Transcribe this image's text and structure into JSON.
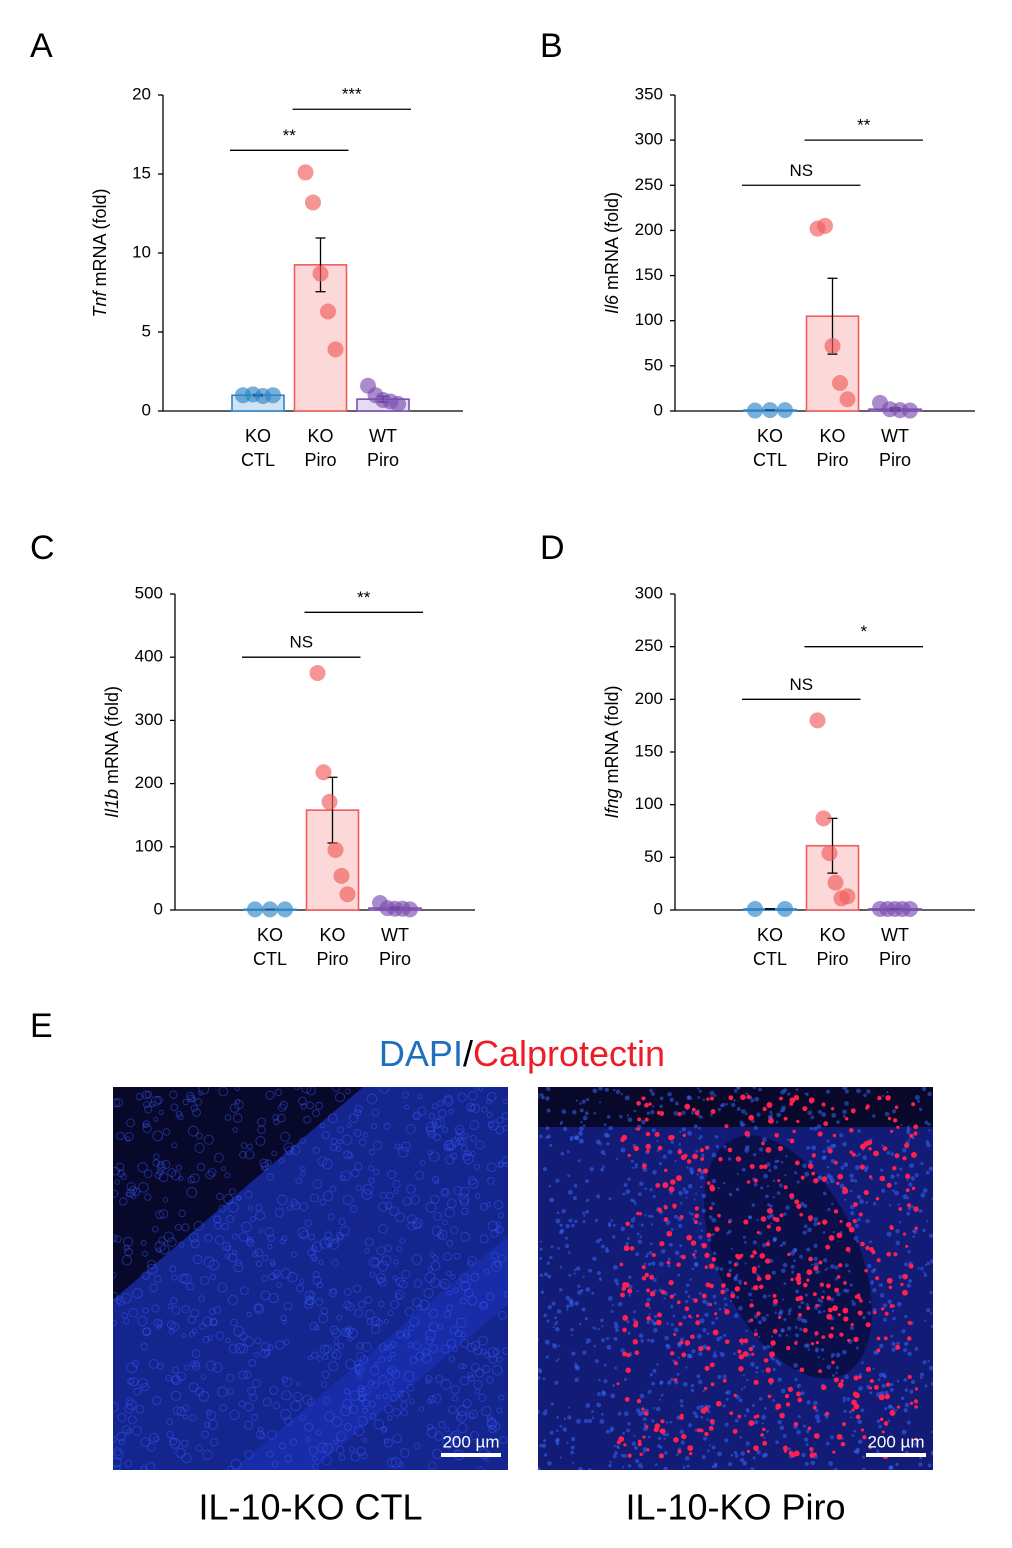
{
  "chart_data": [
    {
      "type": "bar",
      "label": "A",
      "ylabel_gene": "Tnf",
      "ylabel_rest": "mRNA (fold)",
      "categories": [
        [
          "KO",
          "CTL"
        ],
        [
          "KO",
          "Piro"
        ],
        [
          "WT",
          "Piro"
        ]
      ],
      "colors": [
        "#2e86c8",
        "#f15c5c",
        "#7b4fb0"
      ],
      "fills": [
        "#cfe3f3",
        "#fdd8d8",
        "#e6dcf1"
      ],
      "values": [
        1.0,
        9.25,
        0.75
      ],
      "errors": [
        0.05,
        1.7,
        0.18
      ],
      "points": [
        [
          1.0,
          1.05,
          0.95,
          1.0
        ],
        [
          15.1,
          13.2,
          8.7,
          6.3,
          3.9
        ],
        [
          1.6,
          1.0,
          0.7,
          0.6,
          0.45
        ]
      ],
      "ylim": [
        0,
        20
      ],
      "yticks": [
        0,
        5,
        10,
        15,
        20
      ],
      "significance": [
        {
          "label": "**",
          "y": 16.5
        },
        {
          "label": "***",
          "y": 19.1
        }
      ]
    },
    {
      "type": "bar",
      "label": "B",
      "ylabel_gene": "Il6",
      "ylabel_rest": "mRNA (fold)",
      "categories": [
        [
          "KO",
          "CTL"
        ],
        [
          "KO",
          "Piro"
        ],
        [
          "WT",
          "Piro"
        ]
      ],
      "colors": [
        "#2e86c8",
        "#f15c5c",
        "#7b4fb0"
      ],
      "fills": [
        "#cfe3f3",
        "#fdd8d8",
        "#e6dcf1"
      ],
      "values": [
        1,
        105,
        2
      ],
      "errors": [
        0.3,
        42,
        1.5
      ],
      "points": [
        [
          0.5,
          1,
          1
        ],
        [
          202,
          205,
          72,
          31,
          13
        ],
        [
          9,
          2,
          1,
          0.5
        ]
      ],
      "ylim": [
        0,
        350
      ],
      "yticks": [
        0,
        50,
        100,
        150,
        200,
        250,
        300,
        350
      ],
      "significance": [
        {
          "label": "NS",
          "y": 250
        },
        {
          "label": "**",
          "y": 300
        }
      ]
    },
    {
      "type": "bar",
      "label": "C",
      "ylabel_gene": "Il1b",
      "ylabel_rest": "mRNA (fold)",
      "categories": [
        [
          "KO",
          "CTL"
        ],
        [
          "KO",
          "Piro"
        ],
        [
          "WT",
          "Piro"
        ]
      ],
      "colors": [
        "#2e86c8",
        "#f15c5c",
        "#7b4fb0"
      ],
      "fills": [
        "#cfe3f3",
        "#fdd8d8",
        "#e6dcf1"
      ],
      "values": [
        1,
        158,
        3
      ],
      "errors": [
        0.2,
        52,
        1.5
      ],
      "points": [
        [
          1,
          1,
          1
        ],
        [
          375,
          218,
          171,
          95,
          54,
          25
        ],
        [
          11,
          3,
          2,
          2,
          1
        ]
      ],
      "ylim": [
        0,
        500
      ],
      "yticks": [
        0,
        100,
        200,
        300,
        400,
        500
      ],
      "significance": [
        {
          "label": "NS",
          "y": 400
        },
        {
          "label": "**",
          "y": 471
        }
      ]
    },
    {
      "type": "bar",
      "label": "D",
      "ylabel_gene": "Ifng",
      "ylabel_rest": "mRNA (fold)",
      "categories": [
        [
          "KO",
          "CTL"
        ],
        [
          "KO",
          "Piro"
        ],
        [
          "WT",
          "Piro"
        ]
      ],
      "colors": [
        "#2e86c8",
        "#f15c5c",
        "#7b4fb0"
      ],
      "fills": [
        "#cfe3f3",
        "#fdd8d8",
        "#e6dcf1"
      ],
      "values": [
        1,
        61,
        1
      ],
      "errors": [
        0.2,
        26,
        0.2
      ],
      "points": [
        [
          1,
          1
        ],
        [
          180,
          87,
          54,
          26,
          11,
          13
        ],
        [
          1,
          1,
          1,
          1,
          1
        ]
      ],
      "ylim": [
        0,
        300
      ],
      "yticks": [
        0,
        50,
        100,
        150,
        200,
        250,
        300
      ],
      "significance": [
        {
          "label": "NS",
          "y": 200
        },
        {
          "label": "*",
          "y": 250
        }
      ]
    }
  ],
  "panel_e": {
    "label": "E",
    "title": [
      {
        "text": "DAPI",
        "color": "#1f6fc0"
      },
      {
        "text": "/",
        "color": "#000000"
      },
      {
        "text": "Calprotectin",
        "color": "#ee1c25"
      }
    ],
    "images": [
      {
        "label": "IL-10-KO CTL",
        "scale_bar": "200 µm"
      },
      {
        "label": "IL-10-KO Piro",
        "scale_bar": "200 µm"
      }
    ]
  }
}
